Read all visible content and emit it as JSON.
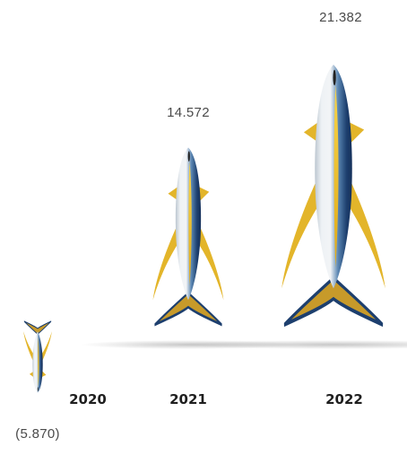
{
  "chart_data": {
    "type": "bar",
    "categories": [
      "2020",
      "2021",
      "2022"
    ],
    "values": [
      -5.87,
      14.572,
      21.382
    ],
    "value_labels": [
      "(5.870)",
      "14.572",
      "21.382"
    ],
    "title": "",
    "xlabel": "",
    "ylabel": "",
    "legend": "none",
    "grid": false,
    "marker": "yellowfin-tuna pictogram; negative value drawn upside down"
  },
  "colors": {
    "tuna_dark": "#1d3f6e",
    "tuna_blue": "#2f6fa8",
    "tuna_silver": "#d7dde4",
    "tuna_yellow": "#f0c419",
    "fin_yellow": "#e3b52a",
    "label_text": "#4a4a4a",
    "year_text": "#1f1f1f"
  }
}
